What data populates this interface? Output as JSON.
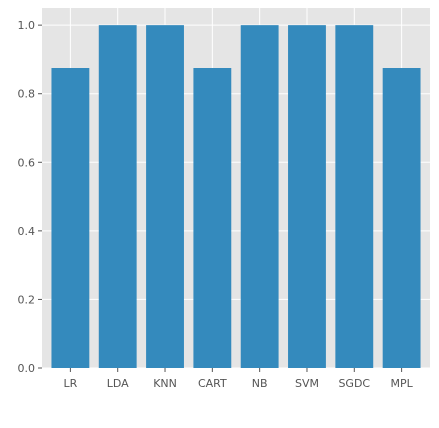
{
  "chart_data": {
    "type": "bar",
    "title": "",
    "xlabel": "",
    "ylabel": "",
    "categories": [
      "LR",
      "LDA",
      "KNN",
      "CART",
      "NB",
      "SVM",
      "SGDC",
      "MPL"
    ],
    "values": [
      0.875,
      1.0,
      1.0,
      0.875,
      1.0,
      1.0,
      1.0,
      0.875
    ],
    "ylim": [
      0,
      1.05
    ],
    "yticks": [
      0.0,
      0.2,
      0.4,
      0.6,
      0.8,
      1.0
    ],
    "ytick_labels": [
      "0.0",
      "0.2",
      "0.4",
      "0.6",
      "0.8",
      "1.0"
    ],
    "grid": true,
    "legend": "none",
    "colors": {
      "bar": "#348ABD",
      "plot_background": "#E5E5E5",
      "grid": "#FFFFFF",
      "tick_text": "#555555"
    }
  }
}
